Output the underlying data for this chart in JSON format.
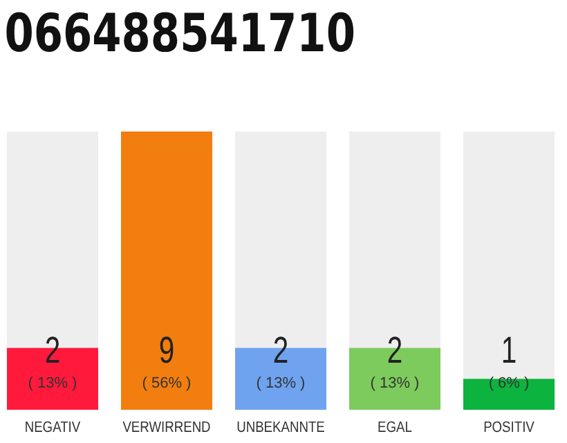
{
  "chart_data": {
    "type": "bar",
    "title": "066488541710",
    "categories": [
      "NEGATIV",
      "VERWIRREND",
      "UNBEKANNTE",
      "EGAL",
      "POSITIV"
    ],
    "values": [
      2,
      9,
      2,
      2,
      1
    ],
    "data_labels": true,
    "colors": [
      "#ff1a3c",
      "#f27e0f",
      "#6fa3ef",
      "#7dcb5d",
      "#0db33f"
    ],
    "annotations": [
      "( 13% )",
      "( 56% )",
      "( 13% )",
      "( 13% )",
      "( 6% )"
    ]
  }
}
